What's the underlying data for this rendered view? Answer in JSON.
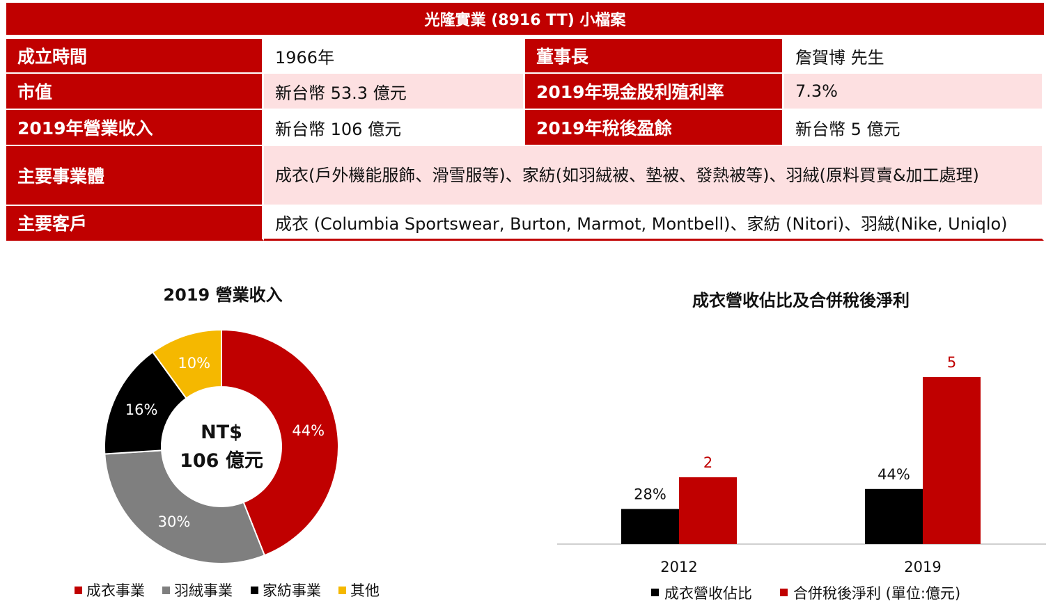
{
  "header": {
    "title": "光隆實業 (8916 TT) 小檔案"
  },
  "profile": {
    "rows": [
      {
        "label1": "成立時間",
        "value1": "1966年",
        "label2": "董事長",
        "value2": "詹賀博 先生"
      },
      {
        "label1": "市值",
        "value1": "新台幣 53.3 億元",
        "label2": "2019年現金股利殖利率",
        "value2": "7.3%"
      },
      {
        "label1": "2019年營業收入",
        "value1": "新台幣 106 億元",
        "label2": "2019年稅後盈餘",
        "value2": "新台幣 5 億元"
      }
    ],
    "business": {
      "label": "主要事業體",
      "value": "成衣(戶外機能服飾、滑雪服等)、家紡(如羽絨被、墊被、發熱被等)、羽絨(原料買賣&加工處理)"
    },
    "customers": {
      "label": "主要客戶",
      "value": "成衣 (Columbia Sportswear, Burton, Marmot, Montbell)、家紡 (Nitori)、羽絨(Nike, Uniqlo)"
    }
  },
  "colors": {
    "red": "#c00000",
    "gray": "#7f7f7f",
    "black": "#000000",
    "yellow": "#f5b800",
    "pink": "#fde0e1"
  },
  "chart_data": [
    {
      "type": "pie",
      "title": "2019 營業收入",
      "center_label_line1": "NT$",
      "center_label_line2": "106 億元",
      "labels": [
        "成衣事業",
        "羽絨事業",
        "家紡事業",
        "其他"
      ],
      "values": [
        44,
        30,
        16,
        10
      ],
      "value_labels": [
        "44%",
        "30%",
        "16%",
        "10%"
      ],
      "colors": [
        "#c00000",
        "#7f7f7f",
        "#000000",
        "#f5b800"
      ],
      "legend": "bottom"
    },
    {
      "type": "bar",
      "title": "成衣營收佔比及合併稅後淨利",
      "categories": [
        "2012",
        "2019"
      ],
      "series": [
        {
          "name": "成衣營收佔比",
          "values": [
            28,
            44
          ],
          "value_labels": [
            "28%",
            "44%"
          ],
          "color": "#000000"
        },
        {
          "name": "合併稅後淨利 (單位:億元)",
          "values": [
            2,
            5
          ],
          "value_labels": [
            "2",
            "5"
          ],
          "color": "#c00000"
        }
      ],
      "legend": "bottom"
    }
  ]
}
